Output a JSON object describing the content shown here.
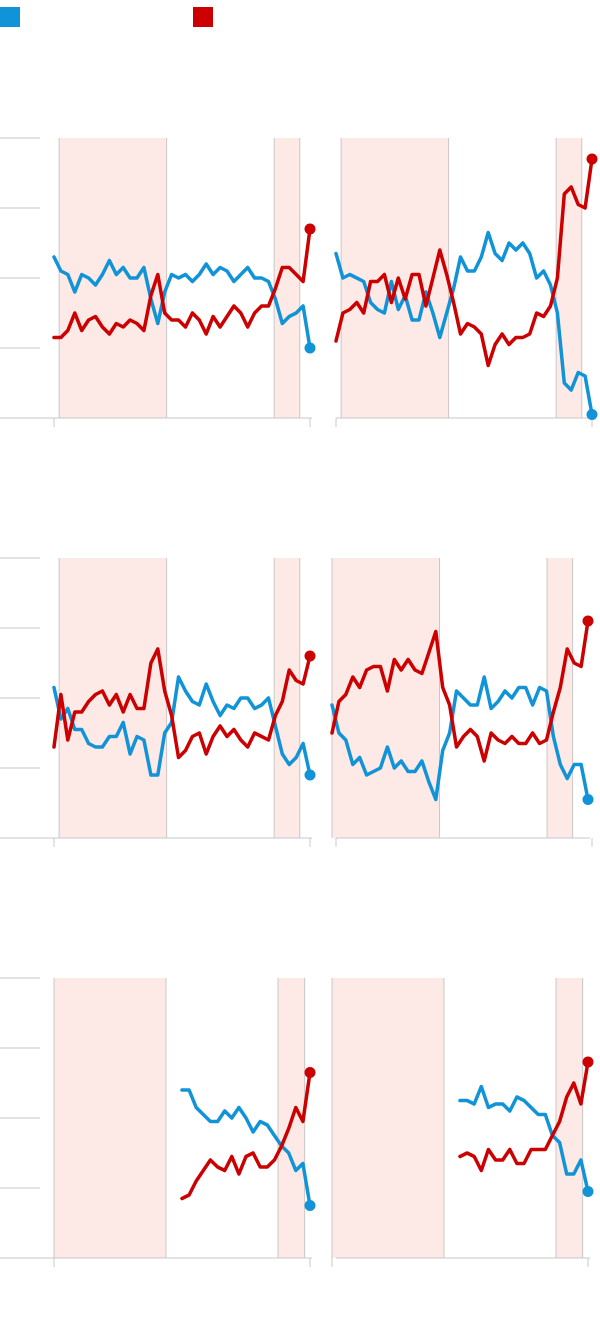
{
  "colors": {
    "series_a": "#1193d8",
    "series_b": "#cc0000",
    "shade": "#fde9e6",
    "shade_line": "#c8c8c8",
    "axis": "#c8c8c8"
  },
  "legend": {
    "items": [
      {
        "name": "",
        "color": "#1193d8"
      },
      {
        "name": "",
        "color": "#cc0000"
      }
    ]
  },
  "chart_data": [
    {
      "type": "line",
      "ylim": [
        0,
        4
      ],
      "xlim": [
        0,
        50
      ],
      "grid": false,
      "shaded_ranges": [
        [
          1,
          22
        ],
        [
          43,
          48
        ]
      ],
      "series": [
        {
          "color": "#1193d8",
          "values": [
            2.3,
            2.1,
            2.05,
            1.8,
            2.05,
            2.0,
            1.9,
            2.05,
            2.25,
            2.05,
            2.15,
            2.0,
            2.0,
            2.15,
            1.7,
            1.35,
            1.8,
            2.05,
            2.0,
            2.05,
            1.95,
            2.05,
            2.2,
            2.05,
            2.15,
            2.1,
            1.95,
            2.05,
            2.15,
            2.0,
            2.0,
            1.95,
            1.7,
            1.35,
            1.45,
            1.5,
            1.6,
            1.0
          ]
        },
        {
          "color": "#cc0000",
          "values": [
            1.15,
            1.15,
            1.25,
            1.5,
            1.25,
            1.4,
            1.45,
            1.3,
            1.2,
            1.35,
            1.3,
            1.4,
            1.35,
            1.25,
            1.75,
            2.05,
            1.5,
            1.4,
            1.4,
            1.3,
            1.5,
            1.4,
            1.2,
            1.45,
            1.3,
            1.45,
            1.6,
            1.5,
            1.3,
            1.5,
            1.6,
            1.6,
            1.85,
            2.15,
            2.15,
            2.05,
            1.95,
            2.7
          ]
        }
      ]
    },
    {
      "type": "line",
      "ylim": [
        0,
        4
      ],
      "xlim": [
        0,
        50
      ],
      "grid": false,
      "shaded_ranges": [
        [
          1,
          22
        ],
        [
          43,
          48
        ]
      ],
      "series": [
        {
          "color": "#1193d8",
          "values": [
            2.35,
            2.0,
            2.05,
            2.0,
            1.95,
            1.65,
            1.55,
            1.5,
            1.95,
            1.55,
            1.75,
            1.4,
            1.4,
            1.8,
            1.5,
            1.15,
            1.5,
            1.85,
            2.3,
            2.1,
            2.1,
            2.3,
            2.65,
            2.35,
            2.25,
            2.5,
            2.4,
            2.5,
            2.35,
            2.0,
            2.1,
            1.9,
            1.5,
            0.5,
            0.4,
            0.65,
            0.6,
            0.05
          ]
        },
        {
          "color": "#cc0000",
          "values": [
            1.1,
            1.5,
            1.55,
            1.65,
            1.5,
            1.95,
            1.95,
            2.05,
            1.65,
            2.0,
            1.7,
            2.05,
            2.05,
            1.6,
            2.0,
            2.4,
            2.05,
            1.65,
            1.2,
            1.35,
            1.3,
            1.2,
            0.75,
            1.05,
            1.2,
            1.05,
            1.15,
            1.15,
            1.2,
            1.5,
            1.45,
            1.6,
            2.0,
            3.2,
            3.3,
            3.05,
            3.0,
            3.7
          ]
        }
      ]
    },
    {
      "type": "line",
      "ylim": [
        0,
        4
      ],
      "xlim": [
        0,
        50
      ],
      "grid": false,
      "shaded_ranges": [
        [
          1,
          22
        ],
        [
          43,
          48
        ]
      ],
      "series": [
        {
          "color": "#1193d8",
          "values": [
            2.15,
            1.7,
            1.85,
            1.55,
            1.55,
            1.35,
            1.3,
            1.3,
            1.45,
            1.45,
            1.65,
            1.2,
            1.45,
            1.4,
            0.9,
            0.9,
            1.5,
            1.65,
            2.3,
            2.1,
            1.95,
            1.9,
            2.2,
            1.95,
            1.75,
            1.9,
            1.85,
            2.0,
            2.0,
            1.85,
            1.9,
            2.0,
            1.6,
            1.2,
            1.05,
            1.15,
            1.35,
            0.9
          ]
        },
        {
          "color": "#cc0000",
          "values": [
            1.3,
            2.05,
            1.4,
            1.8,
            1.8,
            1.95,
            2.05,
            2.1,
            1.9,
            2.05,
            1.8,
            2.05,
            1.85,
            1.85,
            2.5,
            2.7,
            2.1,
            1.75,
            1.15,
            1.25,
            1.45,
            1.5,
            1.2,
            1.45,
            1.6,
            1.45,
            1.55,
            1.4,
            1.3,
            1.5,
            1.45,
            1.4,
            1.75,
            1.95,
            2.4,
            2.25,
            2.2,
            2.6
          ]
        }
      ]
    },
    {
      "type": "line",
      "ylim": [
        0,
        4
      ],
      "xlim": [
        0,
        50
      ],
      "grid": false,
      "shaded_ranges": [
        [
          0,
          21
        ],
        [
          42,
          47
        ]
      ],
      "series": [
        {
          "color": "#1193d8",
          "values": [
            1.9,
            1.5,
            1.4,
            1.05,
            1.15,
            0.9,
            0.95,
            1.0,
            1.3,
            1.0,
            1.1,
            0.95,
            0.95,
            1.1,
            0.8,
            0.55,
            1.25,
            1.5,
            2.1,
            2.0,
            1.9,
            1.9,
            2.3,
            1.85,
            1.95,
            2.1,
            2.0,
            2.15,
            2.15,
            1.9,
            2.15,
            2.1,
            1.45,
            1.05,
            0.85,
            1.05,
            1.05,
            0.55
          ]
        },
        {
          "color": "#cc0000",
          "values": [
            1.5,
            1.95,
            2.05,
            2.3,
            2.15,
            2.4,
            2.45,
            2.45,
            2.1,
            2.55,
            2.4,
            2.55,
            2.4,
            2.35,
            2.65,
            2.95,
            2.15,
            1.9,
            1.3,
            1.45,
            1.55,
            1.45,
            1.1,
            1.5,
            1.4,
            1.35,
            1.45,
            1.35,
            1.35,
            1.5,
            1.35,
            1.4,
            1.8,
            2.15,
            2.7,
            2.5,
            2.45,
            3.1
          ]
        }
      ]
    },
    {
      "type": "line",
      "ylim": [
        0,
        4
      ],
      "xlim": [
        0,
        48
      ],
      "grid": false,
      "shaded_ranges": [
        [
          0,
          21
        ],
        [
          42,
          47
        ]
      ],
      "series": [
        {
          "color": "#1193d8",
          "x_start": 24,
          "values": [
            2.4,
            2.4,
            2.15,
            2.05,
            1.95,
            1.95,
            2.1,
            2.0,
            2.15,
            2.0,
            1.8,
            1.95,
            1.9,
            1.75,
            1.6,
            1.5,
            1.25,
            1.35,
            0.75
          ]
        },
        {
          "color": "#cc0000",
          "x_start": 24,
          "values": [
            0.85,
            0.9,
            1.1,
            1.25,
            1.4,
            1.3,
            1.25,
            1.45,
            1.2,
            1.45,
            1.5,
            1.3,
            1.3,
            1.4,
            1.6,
            1.85,
            2.15,
            1.95,
            2.65
          ]
        }
      ]
    },
    {
      "type": "line",
      "ylim": [
        0,
        4
      ],
      "xlim": [
        0,
        48
      ],
      "grid": false,
      "shaded_ranges": [
        [
          0,
          21
        ],
        [
          42,
          47
        ]
      ],
      "series": [
        {
          "color": "#1193d8",
          "x_start": 24,
          "values": [
            2.25,
            2.25,
            2.2,
            2.45,
            2.15,
            2.2,
            2.2,
            2.1,
            2.3,
            2.25,
            2.15,
            2.05,
            2.05,
            1.75,
            1.65,
            1.2,
            1.2,
            1.4,
            0.95
          ]
        },
        {
          "color": "#cc0000",
          "x_start": 24,
          "values": [
            1.45,
            1.5,
            1.45,
            1.25,
            1.55,
            1.4,
            1.4,
            1.55,
            1.35,
            1.35,
            1.55,
            1.55,
            1.55,
            1.75,
            1.95,
            2.3,
            2.5,
            2.2,
            2.8
          ]
        }
      ]
    }
  ]
}
